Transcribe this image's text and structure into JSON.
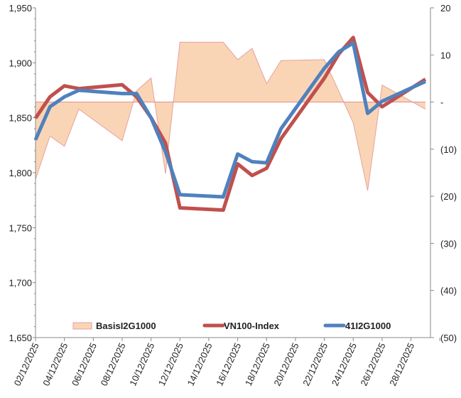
{
  "chart_data": {
    "type": "line",
    "title": "",
    "x_dates": [
      2,
      3,
      4,
      5,
      8,
      9,
      10,
      11,
      12,
      15,
      16,
      17,
      18,
      19,
      22,
      23,
      24,
      25,
      26,
      29
    ],
    "x_tick_labels": [
      "02/12/2025",
      "04/12/2025",
      "06/12/2025",
      "08/12/2025",
      "10/12/2025",
      "12/12/2025",
      "14/12/2025",
      "16/12/2025",
      "18/12/2025",
      "20/12/2025",
      "22/12/2025",
      "24/12/2025",
      "26/12/2025",
      "28/12/2025"
    ],
    "x_tick_days": [
      2,
      4,
      6,
      8,
      10,
      12,
      14,
      16,
      18,
      20,
      22,
      24,
      26,
      28
    ],
    "y_left": {
      "range": [
        1650,
        1950
      ],
      "ticks": [
        1650,
        1700,
        1750,
        1800,
        1850,
        1900,
        1950
      ],
      "tick_labels": [
        "1,650",
        "1,700",
        "1,750",
        "1,800",
        "1,850",
        "1,900",
        "1,950"
      ]
    },
    "y_right": {
      "range": [
        -50,
        20
      ],
      "ticks": [
        20,
        10,
        0,
        -10,
        -20,
        -30,
        -40,
        -50
      ],
      "tick_labels": [
        "20",
        "10",
        "-",
        "(10)",
        "(20)",
        "(30)",
        "(40)",
        "(50)"
      ]
    },
    "series": [
      {
        "name": "BasisI2G1000",
        "kind": "area",
        "axis": "right",
        "color": "#fad5b5",
        "edge": "#e6a0a0",
        "values": [
          -16.4,
          -7.2,
          -9.4,
          -1.5,
          -8.2,
          2.4,
          5.1,
          -15.2,
          12.7,
          12.7,
          9.0,
          11.4,
          3.9,
          8.8,
          9.0,
          2.3,
          -4.4,
          -18.8,
          3.6,
          -1.5
        ]
      },
      {
        "name": "VN100-Index",
        "kind": "line",
        "axis": "left",
        "color": "#c0504d",
        "values": [
          1849.6,
          1869,
          1879,
          1876.5,
          1880,
          1869,
          1850,
          1827,
          1768,
          1766,
          1808,
          1797.5,
          1804,
          1831,
          1886,
          1908,
          1923,
          1873,
          1860,
          1885
        ]
      },
      {
        "name": "41I2G1000",
        "kind": "line",
        "axis": "left",
        "color": "#4f81bd",
        "values": [
          1830,
          1860,
          1869,
          1875,
          1872,
          1872,
          1850,
          1819,
          1780,
          1778,
          1817,
          1810,
          1809,
          1840,
          1895,
          1910,
          1918,
          1854,
          1865,
          1883
        ]
      }
    ],
    "legend_position": "bottom-inside",
    "grid": false
  }
}
